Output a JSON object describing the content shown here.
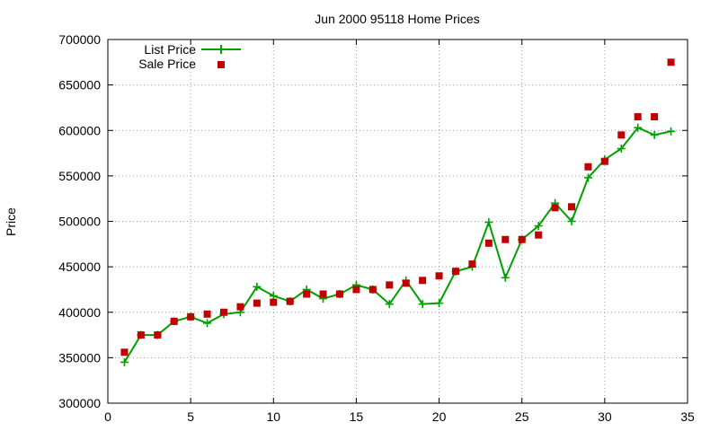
{
  "chart_data": {
    "type": "line",
    "title": "Jun 2000 95118 Home Prices",
    "xlabel": "",
    "ylabel": "Price",
    "xlim": [
      0,
      35
    ],
    "ylim": [
      300000,
      700000
    ],
    "x_ticks": [
      0,
      5,
      10,
      15,
      20,
      25,
      30,
      35
    ],
    "y_ticks": [
      300000,
      350000,
      400000,
      450000,
      500000,
      550000,
      600000,
      650000,
      700000
    ],
    "grid": true,
    "legend_position": "top-left",
    "series": [
      {
        "name": "List Price",
        "style": "line+points",
        "color": "#00a000",
        "x": [
          1,
          2,
          3,
          4,
          5,
          6,
          7,
          8,
          9,
          10,
          11,
          12,
          13,
          14,
          15,
          16,
          17,
          18,
          19,
          20,
          21,
          22,
          23,
          24,
          25,
          26,
          27,
          28,
          29,
          30,
          31,
          32,
          33,
          34
        ],
        "y": [
          345000,
          375000,
          375000,
          390000,
          395000,
          388000,
          398000,
          400000,
          428000,
          418000,
          412000,
          425000,
          415000,
          420000,
          430000,
          425000,
          409000,
          435000,
          409000,
          410000,
          445000,
          450000,
          499000,
          438000,
          480000,
          495000,
          520000,
          500000,
          548000,
          568000,
          580000,
          603000,
          595000,
          599000
        ]
      },
      {
        "name": "Sale Price",
        "style": "points",
        "color": "#c00000",
        "x": [
          1,
          2,
          3,
          4,
          5,
          6,
          7,
          8,
          9,
          10,
          11,
          12,
          13,
          14,
          15,
          16,
          17,
          18,
          19,
          20,
          21,
          22,
          23,
          24,
          25,
          26,
          27,
          28,
          29,
          30,
          31,
          32,
          33,
          34
        ],
        "y": [
          356000,
          375000,
          375000,
          390000,
          395000,
          398000,
          400000,
          406000,
          410000,
          411000,
          412000,
          420000,
          420000,
          420000,
          425000,
          425000,
          430000,
          432000,
          435000,
          440000,
          445000,
          453000,
          476000,
          480000,
          480000,
          485000,
          515000,
          516000,
          560000,
          566000,
          595000,
          615000,
          615000,
          675000
        ]
      }
    ]
  }
}
